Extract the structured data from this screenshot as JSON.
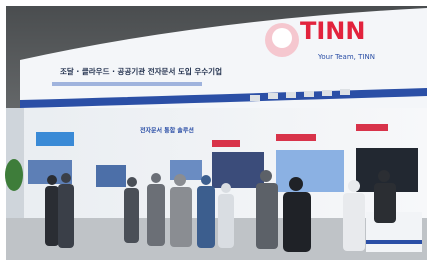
{
  "scene": {
    "logo": "TINN",
    "logo_tagline": "Your Team, TINN",
    "banner": "조달 · 클라우드 · 공공기관 전자문서 도입 우수기업",
    "panel": "전자문서 통합 솔루션"
  }
}
